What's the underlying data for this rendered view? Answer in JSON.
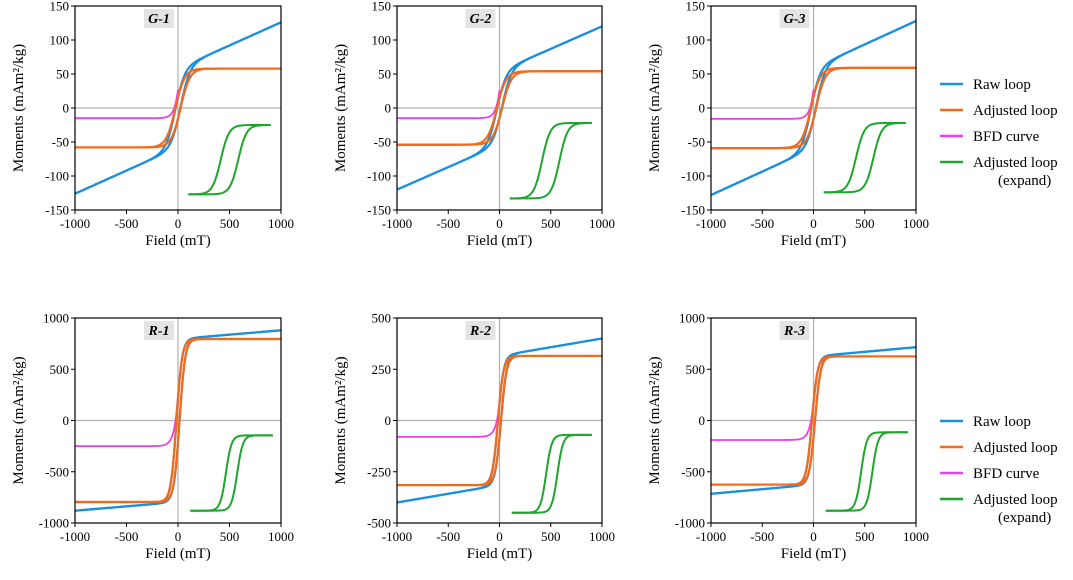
{
  "colors": {
    "raw": "#1a8fdc",
    "adjusted": "#f26a1b",
    "bfd": "#e93ff0",
    "expand": "#1ea52b",
    "zero_line": "#b0b0b0",
    "title_bg": "#e4e4e4"
  },
  "legend_top": {
    "entries": [
      {
        "label": "Raw loop",
        "color": "#1a8fdc"
      },
      {
        "label": "Adjusted loop",
        "color": "#f26a1b"
      },
      {
        "label": "BFD curve",
        "color": "#e93ff0"
      },
      {
        "label": "Adjusted loop",
        "label2": "(expand)",
        "color": "#1ea52b"
      }
    ]
  },
  "legend_bottom": {
    "entries": [
      {
        "label": "Raw loop",
        "color": "#1a8fdc"
      },
      {
        "label": "Adjusted loop",
        "color": "#f26a1b"
      },
      {
        "label": "BFD curve",
        "color": "#e93ff0"
      },
      {
        "label": "Adjusted loop",
        "label2": "(expand)",
        "color": "#1ea52b"
      }
    ]
  },
  "chart_data": [
    {
      "type": "line",
      "title": "G-1",
      "xlabel": "Field (mT)",
      "ylabel": "Moments (mAm²/kg)",
      "xlim": [
        -1000,
        1000
      ],
      "ylim": [
        -150,
        150
      ],
      "xticks": [
        -1000,
        -500,
        0,
        500,
        1000
      ],
      "yticks": [
        -150,
        -100,
        -50,
        0,
        50,
        100,
        150
      ],
      "xtick_labels": [
        "-1000",
        "-500",
        "0",
        "500",
        "1000"
      ],
      "ytick_labels": [
        "-150",
        "-100",
        "-50",
        "0",
        "50",
        "100",
        "150"
      ],
      "series": [
        {
          "name": "Raw loop",
          "ms": 58,
          "chi": 0.068,
          "hc": 25,
          "h0": 90
        },
        {
          "name": "Adjusted loop",
          "ms": 58,
          "chi": 0,
          "hc": 25,
          "h0": 90
        },
        {
          "name": "BFD curve",
          "min": -15,
          "max": 27
        },
        {
          "name": "Adjusted loop (expand)",
          "x_range": [
            100,
            900
          ],
          "y_range": [
            -127,
            -25
          ],
          "offset": 85,
          "width": 80
        }
      ]
    },
    {
      "type": "line",
      "title": "G-2",
      "xlabel": "Field (mT)",
      "ylabel": "Moments (mAm²/kg)",
      "xlim": [
        -1000,
        1000
      ],
      "ylim": [
        -150,
        150
      ],
      "xticks": [
        -1000,
        -500,
        0,
        500,
        1000
      ],
      "yticks": [
        -150,
        -100,
        -50,
        0,
        50,
        100,
        150
      ],
      "xtick_labels": [
        "-1000",
        "-500",
        "0",
        "500",
        "1000"
      ],
      "ytick_labels": [
        "-150",
        "-100",
        "-50",
        "0",
        "50",
        "100",
        "150"
      ],
      "series": [
        {
          "name": "Raw loop",
          "ms": 54,
          "chi": 0.066,
          "hc": 25,
          "h0": 90
        },
        {
          "name": "Adjusted loop",
          "ms": 54,
          "chi": 0,
          "hc": 25,
          "h0": 90
        },
        {
          "name": "BFD curve",
          "min": -15,
          "max": 26
        },
        {
          "name": "Adjusted loop (expand)",
          "x_range": [
            100,
            900
          ],
          "y_range": [
            -133,
            -22
          ],
          "offset": 85,
          "width": 80
        }
      ]
    },
    {
      "type": "line",
      "title": "G-3",
      "xlabel": "Field (mT)",
      "ylabel": "Moments (mAm²/kg)",
      "xlim": [
        -1000,
        1000
      ],
      "ylim": [
        -150,
        150
      ],
      "xticks": [
        -1000,
        -500,
        0,
        500,
        1000
      ],
      "yticks": [
        -150,
        -100,
        -50,
        0,
        50,
        100,
        150
      ],
      "xtick_labels": [
        "-1000",
        "-500",
        "0",
        "500",
        "1000"
      ],
      "ytick_labels": [
        "-150",
        "-100",
        "-50",
        "0",
        "50",
        "100",
        "150"
      ],
      "series": [
        {
          "name": "Raw loop",
          "ms": 59,
          "chi": 0.069,
          "hc": 25,
          "h0": 90
        },
        {
          "name": "Adjusted loop",
          "ms": 59,
          "chi": 0,
          "hc": 25,
          "h0": 90
        },
        {
          "name": "BFD curve",
          "min": -16,
          "max": 27
        },
        {
          "name": "Adjusted loop (expand)",
          "x_range": [
            100,
            900
          ],
          "y_range": [
            -124,
            -22
          ],
          "offset": 85,
          "width": 80
        }
      ]
    },
    {
      "type": "line",
      "title": "R-1",
      "xlabel": "Field (mT)",
      "ylabel": "Moments (mAm²/kg)",
      "xlim": [
        -1000,
        1000
      ],
      "ylim": [
        -1000,
        1000
      ],
      "xticks": [
        -1000,
        -500,
        0,
        500,
        1000
      ],
      "yticks": [
        -1000,
        -500,
        0,
        500,
        1000
      ],
      "xtick_labels": [
        "-1000",
        "-500",
        "0",
        "500",
        "1000"
      ],
      "ytick_labels": [
        "-1000",
        "-500",
        "0",
        "500",
        "1000"
      ],
      "series": [
        {
          "name": "Raw loop",
          "ms": 795,
          "chi": 0.085,
          "hc": 15,
          "h0": 55
        },
        {
          "name": "Adjusted loop",
          "ms": 795,
          "chi": 0,
          "hc": 15,
          "h0": 55
        },
        {
          "name": "BFD curve",
          "min": -250,
          "max": 250
        },
        {
          "name": "Adjusted loop (expand)",
          "x_range": [
            120,
            920
          ],
          "y_range": [
            -880,
            -145
          ],
          "offset": 55,
          "width": 55
        }
      ]
    },
    {
      "type": "line",
      "title": "R-2",
      "xlabel": "Field (mT)",
      "ylabel": "Moments (mAm²/kg)",
      "xlim": [
        -1000,
        1000
      ],
      "ylim": [
        -500,
        500
      ],
      "xticks": [
        -1000,
        -500,
        0,
        500,
        1000
      ],
      "yticks": [
        -500,
        -250,
        0,
        250,
        500
      ],
      "xtick_labels": [
        "-1000",
        "-500",
        "0",
        "500",
        "1000"
      ],
      "ytick_labels": [
        "-500",
        "-250",
        "0",
        "250",
        "500"
      ],
      "series": [
        {
          "name": "Raw loop",
          "ms": 315,
          "chi": 0.085,
          "hc": 15,
          "h0": 55
        },
        {
          "name": "Adjusted loop",
          "ms": 315,
          "chi": 0,
          "hc": 15,
          "h0": 55
        },
        {
          "name": "BFD curve",
          "min": -80,
          "max": 85
        },
        {
          "name": "Adjusted loop (expand)",
          "x_range": [
            120,
            900
          ],
          "y_range": [
            -450,
            -70
          ],
          "offset": 55,
          "width": 55
        }
      ]
    },
    {
      "type": "line",
      "title": "R-3",
      "xlabel": "Field (mT)",
      "ylabel": "Moments (mAm²/kg)",
      "xlim": [
        -1000,
        1000
      ],
      "ylim": [
        -1000,
        1000
      ],
      "xticks": [
        -1000,
        -500,
        0,
        500,
        1000
      ],
      "yticks": [
        -1000,
        -500,
        0,
        500,
        1000
      ],
      "xtick_labels": [
        "-1000",
        "-500",
        "0",
        "500",
        "1000"
      ],
      "ytick_labels": [
        "-1000",
        "-500",
        "0",
        "500",
        "1000"
      ],
      "series": [
        {
          "name": "Raw loop",
          "ms": 625,
          "chi": 0.09,
          "hc": 15,
          "h0": 55
        },
        {
          "name": "Adjusted loop",
          "ms": 625,
          "chi": 0,
          "hc": 15,
          "h0": 55
        },
        {
          "name": "BFD curve",
          "min": -190,
          "max": 190
        },
        {
          "name": "Adjusted loop (expand)",
          "x_range": [
            120,
            920
          ],
          "y_range": [
            -880,
            -115
          ],
          "offset": 55,
          "width": 55
        }
      ]
    }
  ]
}
